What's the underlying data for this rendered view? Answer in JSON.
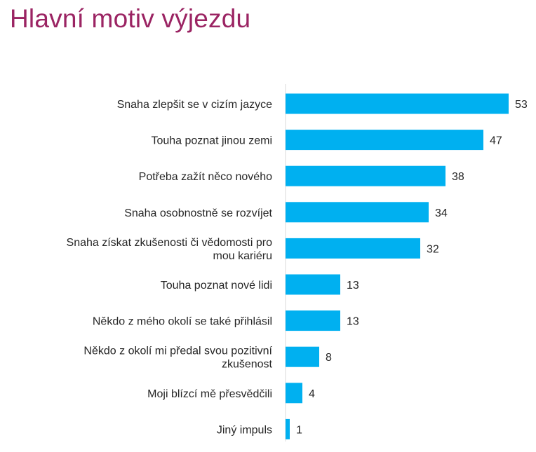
{
  "chart_data": {
    "type": "bar",
    "orientation": "horizontal",
    "title": "Hlavní motiv výjezdu",
    "categories": [
      [
        "Snaha zlepšit se v cizím jazyce"
      ],
      [
        "Touha poznat jinou zemi"
      ],
      [
        "Potřeba zažít něco nového"
      ],
      [
        "Snaha osobnostně se rozvíjet"
      ],
      [
        "Snaha získat zkušenosti či vědomosti pro",
        "mou kariéru"
      ],
      [
        "Touha poznat nové lidi"
      ],
      [
        "Někdo z mého okolí se také přihlásil"
      ],
      [
        "Někdo z okolí mi předal svou pozitivní",
        "zkušenost"
      ],
      [
        "Moji blízcí mě přesvědčili"
      ],
      [
        "Jiný impuls"
      ]
    ],
    "values": [
      53,
      47,
      38,
      34,
      32,
      13,
      13,
      8,
      4,
      1
    ],
    "xlabel": "",
    "ylabel": "",
    "xlim": [
      0,
      53
    ],
    "grid": false,
    "legend": "none",
    "bar_color": "#00b0f0",
    "axis_color": "#d9d9d9"
  }
}
